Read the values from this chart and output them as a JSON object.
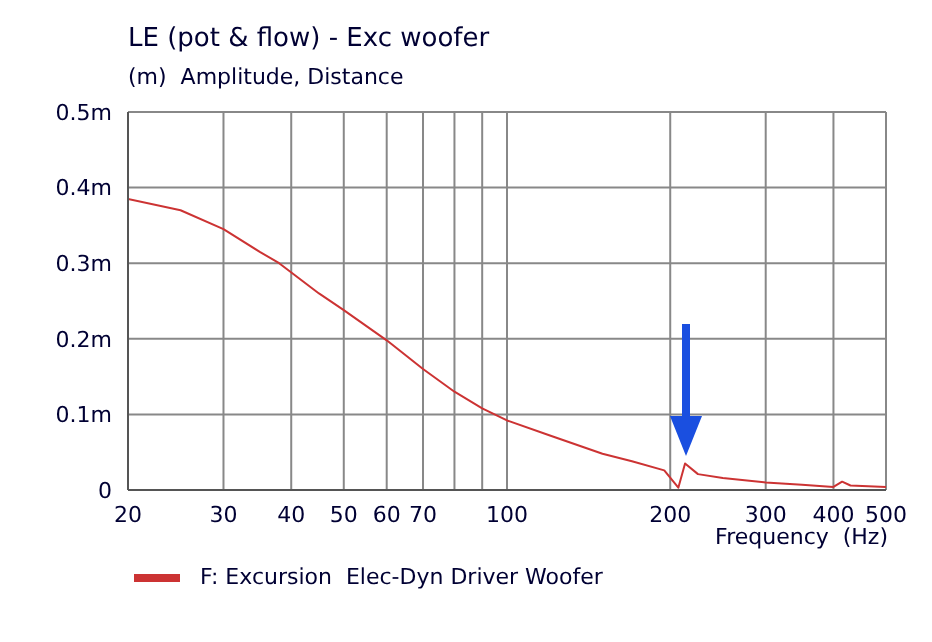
{
  "chart_data": {
    "type": "line",
    "title": "LE (pot & flow) - Exc woofer",
    "ylabel": "(m)  Amplitude, Distance",
    "xlabel": "Frequency  (Hz)",
    "x": [
      20,
      25,
      30,
      35,
      38,
      45,
      50,
      60,
      70,
      80,
      90,
      100,
      120,
      150,
      170,
      195,
      207,
      213,
      225,
      250,
      300,
      350,
      400,
      415,
      430,
      500
    ],
    "series": [
      {
        "name": "F: Excursion  Elec-Dyn Driver Woofer",
        "color": "#cc3333",
        "values": [
          0.385,
          0.37,
          0.345,
          0.315,
          0.3,
          0.26,
          0.238,
          0.198,
          0.16,
          0.13,
          0.108,
          0.092,
          0.072,
          0.048,
          0.038,
          0.026,
          0.003,
          0.035,
          0.021,
          0.016,
          0.01,
          0.007,
          0.004,
          0.011,
          0.006,
          0.004
        ]
      }
    ],
    "log": "x",
    "xlim": [
      20,
      500
    ],
    "xticks": [
      20,
      30,
      40,
      50,
      60,
      70,
      {
        "value": 80,
        "label": null
      },
      {
        "value": 90,
        "label": null
      },
      100,
      200,
      300,
      400,
      500
    ],
    "ylim": [
      0,
      0.5
    ],
    "yticks": [
      0,
      {
        "value": 0.1,
        "label": "0.1m"
      },
      {
        "value": 0.2,
        "label": "0.2m"
      },
      {
        "value": 0.3,
        "label": "0.3m"
      },
      {
        "value": 0.4,
        "label": "0.4m"
      },
      {
        "value": 0.5,
        "label": "0.5m"
      }
    ],
    "grid": true,
    "legend": "bottom left",
    "marker": "none",
    "line_style": "solid"
  }
}
